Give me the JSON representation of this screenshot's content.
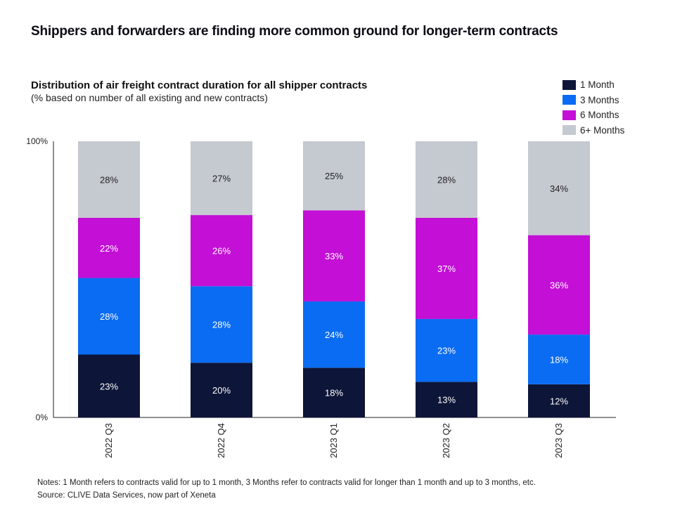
{
  "header": {
    "title": "Shippers and forwarders are finding more common ground for longer-term contracts"
  },
  "chart_data": {
    "type": "bar",
    "stacked": true,
    "title": "Distribution of air freight contract duration for all shipper contracts",
    "subtitle": "(% based on number of all existing and new contracts)",
    "categories": [
      "2022 Q3",
      "2022 Q4",
      "2023 Q1",
      "2023 Q2",
      "2023 Q3"
    ],
    "series": [
      {
        "name": "1 Month",
        "color": "#0d1538",
        "values": [
          23,
          20,
          18,
          13,
          12
        ],
        "labels": [
          "23%",
          "20%",
          "18%",
          "13%",
          "12%"
        ]
      },
      {
        "name": "3 Months",
        "color": "#0a6cf2",
        "values": [
          28,
          28,
          24,
          23,
          18
        ],
        "labels": [
          "28%",
          "28%",
          "24%",
          "23%",
          "18%"
        ]
      },
      {
        "name": "6 Months",
        "color": "#c30fd6",
        "values": [
          22,
          26,
          33,
          37,
          36
        ],
        "labels": [
          "22%",
          "26%",
          "33%",
          "37%",
          "36%"
        ]
      },
      {
        "name": "6+ Months",
        "color": "#c5c9d0",
        "values": [
          28,
          27,
          25,
          28,
          34
        ],
        "labels": [
          "28%",
          "27%",
          "25%",
          "28%",
          "34%"
        ]
      }
    ],
    "yticks": [
      "100%",
      "0%"
    ],
    "ylim": [
      0,
      100
    ],
    "legend_position": "top-right",
    "grid": false
  },
  "footer": {
    "notes": "Notes: 1 Month refers to contracts valid for up to 1 month, 3 Months refer  to contracts valid for longer than 1 month and up to 3 months, etc.",
    "source": "Source: CLIVE Data Services, now part of Xeneta"
  }
}
